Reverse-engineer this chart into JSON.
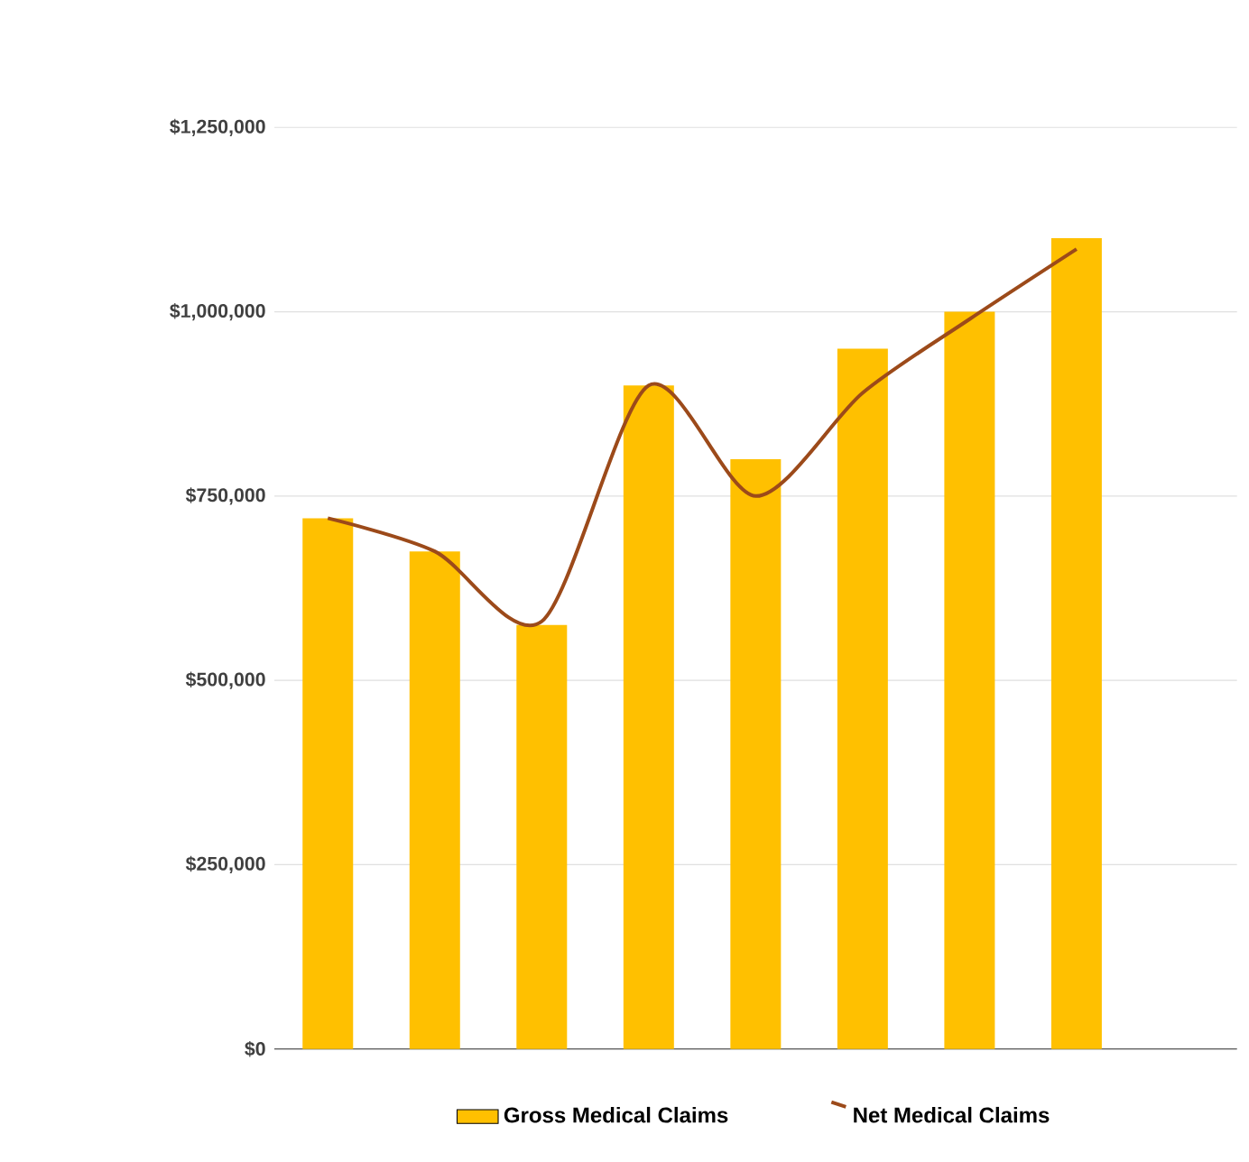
{
  "chart_data": {
    "type": "bar",
    "categories": [
      null,
      null,
      null,
      null,
      null,
      null,
      null,
      null,
      null
    ],
    "series": [
      {
        "name": "Gross Medical Claims",
        "color": "#ffc000",
        "values": [
          720000,
          675000,
          575000,
          900000,
          800000,
          950000,
          1000000,
          1100000,
          null
        ]
      },
      {
        "name": "Net Medical Claims",
        "type": "line",
        "color": "#9c4a1a",
        "values": [
          720000,
          675000,
          580000,
          900000,
          750000,
          890000,
          990000,
          1085000,
          null
        ]
      }
    ],
    "ylim": [
      0,
      1250000
    ],
    "yticks": [
      {
        "value": 0,
        "label": "$0"
      },
      {
        "value": 250000,
        "label": "$250,000"
      },
      {
        "value": 500000,
        "label": "$500,000"
      },
      {
        "value": 750000,
        "label": "$750,000"
      },
      {
        "value": 1000000,
        "label": "$1,000,000"
      },
      {
        "value": 1250000,
        "label": "$1,250,000"
      }
    ],
    "grid": "y",
    "legend": "bottom"
  }
}
